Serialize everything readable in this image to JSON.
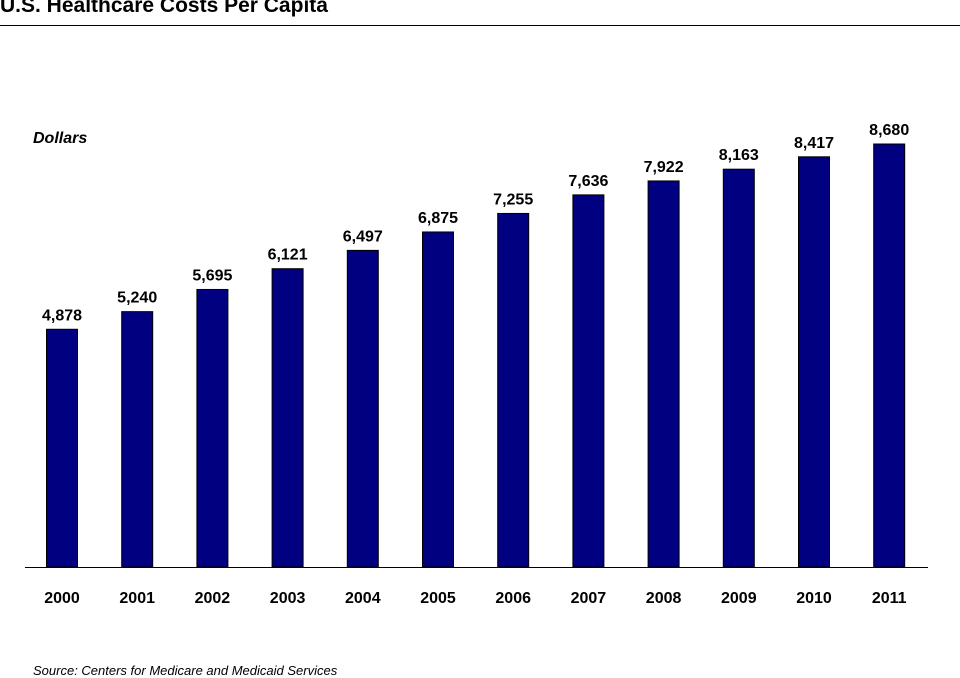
{
  "chart_data": {
    "type": "bar",
    "title": "U.S. Healthcare Costs Per Capita",
    "ylabel": "Dollars",
    "xlabel": "",
    "source": "Source: Centers for Medicare and Medicaid Services",
    "categories": [
      "2000",
      "2001",
      "2002",
      "2003",
      "2004",
      "2005",
      "2006",
      "2007",
      "2008",
      "2009",
      "2010",
      "2011"
    ],
    "values": [
      4878,
      5240,
      5695,
      6121,
      6497,
      6875,
      7255,
      7636,
      7922,
      8163,
      8417,
      8680
    ],
    "value_labels": [
      "4,878",
      "5,240",
      "5,695",
      "6,121",
      "6,497",
      "6,875",
      "7,255",
      "7,636",
      "7,922",
      "8,163",
      "8,417",
      "8,680"
    ],
    "ylim": [
      0,
      8680
    ],
    "grid": false,
    "bar_color": "#000080"
  }
}
